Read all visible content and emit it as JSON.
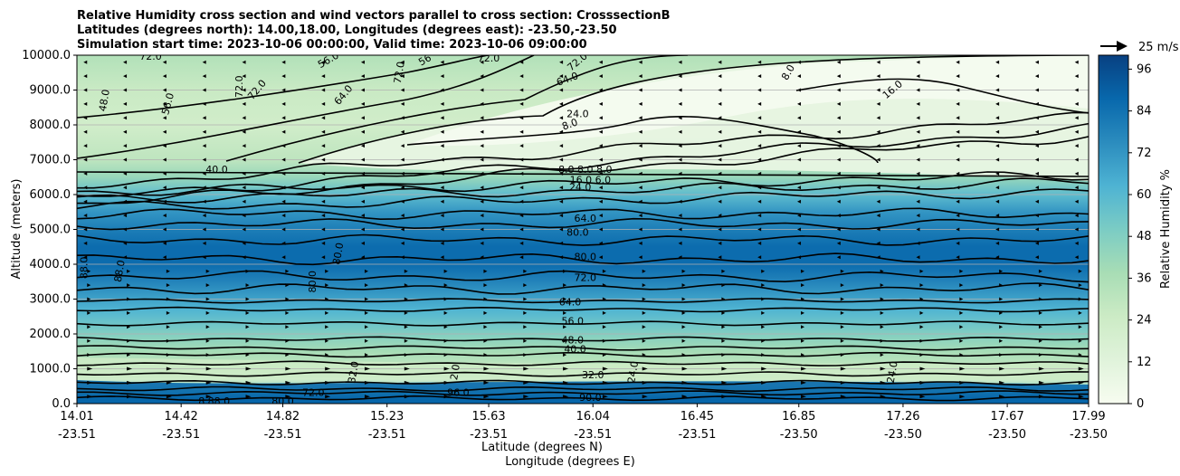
{
  "chart_data": {
    "type": "contour",
    "title": [
      "Relative Humidity cross section and wind vectors parallel to cross section: CrosssectionB",
      "Latitudes (degrees north): 14.00,18.00, Longitudes (degrees east): -23.50,-23.50",
      "Simulation start time: 2023-10-06 00:00:00, Valid time: 2023-10-06 09:00:00"
    ],
    "ylabel": "Altitude (meters)",
    "xlabel": "Latitude (degrees N)",
    "xlabel2": "Longitude (degrees E)",
    "ylim": [
      0,
      10000
    ],
    "yticks": [
      "0.0",
      "1000.0",
      "2000.0",
      "3000.0",
      "4000.0",
      "5000.0",
      "6000.0",
      "7000.0",
      "8000.0",
      "9000.0",
      "10000.0"
    ],
    "lat_ticks": [
      "14.01",
      "14.42",
      "14.82",
      "15.23",
      "15.63",
      "16.04",
      "16.45",
      "16.85",
      "17.26",
      "17.67",
      "17.99"
    ],
    "lon_ticks": [
      "-23.51",
      "-23.51",
      "-23.51",
      "-23.51",
      "-23.51",
      "-23.51",
      "-23.51",
      "-23.50",
      "-23.50",
      "-23.50",
      "-23.50"
    ],
    "colorbar": {
      "label": "Relative Humidity %",
      "ticks": [
        "0",
        "12",
        "24",
        "36",
        "48",
        "60",
        "72",
        "84",
        "96"
      ],
      "range": [
        0,
        100
      ]
    },
    "quiver_key": "25 m/s",
    "rh_profile": [
      {
        "z": 0,
        "rh": 95
      },
      {
        "z": 150,
        "rh": 92
      },
      {
        "z": 350,
        "rh": 50
      },
      {
        "z": 700,
        "rh": 22
      },
      {
        "z": 1100,
        "rh": 30
      },
      {
        "z": 1500,
        "rh": 38
      },
      {
        "z": 1900,
        "rh": 46
      },
      {
        "z": 2300,
        "rh": 54
      },
      {
        "z": 2700,
        "rh": 62
      },
      {
        "z": 3100,
        "rh": 70
      },
      {
        "z": 3500,
        "rh": 78
      },
      {
        "z": 4000,
        "rh": 86
      },
      {
        "z": 4500,
        "rh": 86
      },
      {
        "z": 5000,
        "rh": 80
      },
      {
        "z": 5500,
        "rh": 72
      },
      {
        "z": 6000,
        "rh": 58
      },
      {
        "z": 6500,
        "rh": 42
      },
      {
        "z": 7000,
        "rh": 30
      },
      {
        "z": 8000,
        "rh": 22
      },
      {
        "z": 9000,
        "rh": 26
      },
      {
        "z": 10000,
        "rh": 34
      }
    ],
    "contour_labels": [
      {
        "text": "72.0",
        "lat": 14.3,
        "z": 9950,
        "rot": 0
      },
      {
        "text": "56.0",
        "lat": 15.0,
        "z": 9850,
        "rot": -30
      },
      {
        "text": "72.0",
        "lat": 15.28,
        "z": 9500,
        "rot": -80
      },
      {
        "text": "56",
        "lat": 15.38,
        "z": 9850,
        "rot": -30
      },
      {
        "text": "72.0",
        "lat": 15.63,
        "z": 9900,
        "rot": 0
      },
      {
        "text": "72.0",
        "lat": 15.98,
        "z": 9800,
        "rot": -40
      },
      {
        "text": "8.0",
        "lat": 16.81,
        "z": 9500,
        "rot": -60
      },
      {
        "text": "16.0",
        "lat": 17.22,
        "z": 9000,
        "rot": -40
      },
      {
        "text": "48.0",
        "lat": 14.12,
        "z": 8700,
        "rot": -80
      },
      {
        "text": "56.0",
        "lat": 14.37,
        "z": 8600,
        "rot": -75
      },
      {
        "text": "72.0",
        "lat": 14.65,
        "z": 9100,
        "rot": -90
      },
      {
        "text": "72.0",
        "lat": 14.72,
        "z": 9000,
        "rot": -50
      },
      {
        "text": "64.0",
        "lat": 15.06,
        "z": 8850,
        "rot": -50
      },
      {
        "text": "64.0",
        "lat": 15.94,
        "z": 9300,
        "rot": -20
      },
      {
        "text": "24.0",
        "lat": 15.98,
        "z": 8300,
        "rot": 0
      },
      {
        "text": "8.0",
        "lat": 15.95,
        "z": 8000,
        "rot": -20
      },
      {
        "text": "40.0",
        "lat": 14.56,
        "z": 6700,
        "rot": 0
      },
      {
        "text": "8.0 8.0 8.0",
        "lat": 16.01,
        "z": 6700,
        "rot": 0
      },
      {
        "text": "16.0 6.0",
        "lat": 16.03,
        "z": 6400,
        "rot": 0
      },
      {
        "text": "24.0",
        "lat": 15.99,
        "z": 6200,
        "rot": 0
      },
      {
        "text": "64.0",
        "lat": 16.01,
        "z": 5300,
        "rot": 0
      },
      {
        "text": "80.0",
        "lat": 15.98,
        "z": 4900,
        "rot": 0
      },
      {
        "text": "80.0",
        "lat": 15.04,
        "z": 4300,
        "rot": -80
      },
      {
        "text": "88.0",
        "lat": 14.04,
        "z": 3900,
        "rot": -90
      },
      {
        "text": "88.0",
        "lat": 14.18,
        "z": 3800,
        "rot": -80
      },
      {
        "text": "80.0",
        "lat": 14.94,
        "z": 3500,
        "rot": -90
      },
      {
        "text": "80.0",
        "lat": 16.01,
        "z": 4200,
        "rot": 0
      },
      {
        "text": "72.0",
        "lat": 16.01,
        "z": 3600,
        "rot": 0
      },
      {
        "text": "64.0",
        "lat": 15.95,
        "z": 2900,
        "rot": 0
      },
      {
        "text": "56.0",
        "lat": 15.96,
        "z": 2350,
        "rot": 0
      },
      {
        "text": "48.0",
        "lat": 15.96,
        "z": 1800,
        "rot": 0
      },
      {
        "text": "40.0",
        "lat": 15.97,
        "z": 1550,
        "rot": 0
      },
      {
        "text": "32.0",
        "lat": 15.1,
        "z": 900,
        "rot": -80
      },
      {
        "text": "2.0",
        "lat": 15.5,
        "z": 900,
        "rot": -80
      },
      {
        "text": "24.0",
        "lat": 16.2,
        "z": 900,
        "rot": -80
      },
      {
        "text": "24.0",
        "lat": 17.22,
        "z": 900,
        "rot": -80
      },
      {
        "text": "32.0",
        "lat": 16.04,
        "z": 800,
        "rot": 0
      },
      {
        "text": "96.0",
        "lat": 15.51,
        "z": 300,
        "rot": 0
      },
      {
        "text": "90.0",
        "lat": 16.03,
        "z": 150,
        "rot": 0
      },
      {
        "text": "8 88.0",
        "lat": 14.55,
        "z": 50,
        "rot": 0
      },
      {
        "text": "80.0",
        "lat": 14.82,
        "z": 50,
        "rot": 0
      },
      {
        "text": "72.0",
        "lat": 14.94,
        "z": 300,
        "rot": 0
      }
    ]
  },
  "colors": {
    "cmap": [
      "#f7fcf0",
      "#e0f3db",
      "#ccebc5",
      "#a8ddb5",
      "#7bccc4",
      "#4eb3d3",
      "#2b8cbe",
      "#0868ac",
      "#084081"
    ],
    "contour": "#000000"
  }
}
